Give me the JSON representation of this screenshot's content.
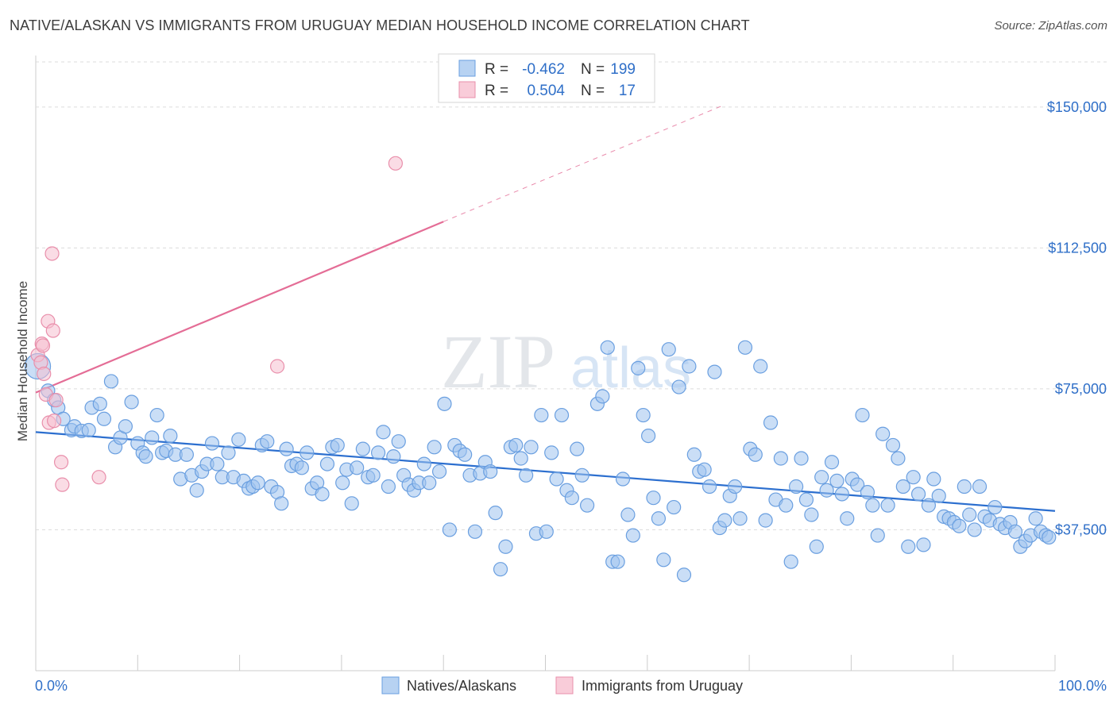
{
  "chart_data": {
    "type": "scatter",
    "title": "NATIVE/ALASKAN VS IMMIGRANTS FROM URUGUAY MEDIAN HOUSEHOLD INCOME CORRELATION CHART",
    "source": "Source: ZipAtlas.com",
    "watermark": {
      "zip": "ZIP",
      "atlas": "atlas"
    },
    "xlabel": "",
    "ylabel": "Median Household Income",
    "xlim": [
      0,
      100
    ],
    "ylim": [
      0,
      162000
    ],
    "x_tick_labels": [
      "0.0%",
      "100.0%"
    ],
    "y_ticks": [
      37500,
      75000,
      112500,
      150000
    ],
    "y_tick_labels": [
      "$37,500",
      "$75,000",
      "$112,500",
      "$150,000"
    ],
    "grid": true,
    "legend_position": "bottom",
    "stats_box": {
      "rows": [
        {
          "r_label": "R =",
          "r_value": "-0.462",
          "n_label": "N =",
          "n_value": "199"
        },
        {
          "r_label": "R =",
          "r_value": "0.504",
          "n_label": "N =",
          "n_value": "17"
        }
      ]
    },
    "series": [
      {
        "name": "Natives/Alaskans",
        "color": "#9ec3ef",
        "stroke": "#6a9fe0",
        "trend_color": "#2c6fcf",
        "trend": {
          "x": [
            0,
            100
          ],
          "y": [
            63500,
            42500
          ]
        },
        "points": [
          [
            0.2,
            81000
          ],
          [
            1.2,
            74500
          ],
          [
            1.8,
            72000
          ],
          [
            2.2,
            70000
          ],
          [
            2.7,
            67000
          ],
          [
            3.5,
            64000
          ],
          [
            3.8,
            65000
          ],
          [
            4.5,
            63800
          ],
          [
            5.2,
            64000
          ],
          [
            5.5,
            70000
          ],
          [
            6.3,
            71000
          ],
          [
            6.7,
            67000
          ],
          [
            7.4,
            77000
          ],
          [
            7.8,
            59500
          ],
          [
            8.3,
            62000
          ],
          [
            8.8,
            65000
          ],
          [
            9.4,
            71500
          ],
          [
            10.0,
            60500
          ],
          [
            10.5,
            58000
          ],
          [
            10.8,
            57000
          ],
          [
            11.4,
            62000
          ],
          [
            11.9,
            68000
          ],
          [
            12.4,
            58000
          ],
          [
            12.8,
            58500
          ],
          [
            13.2,
            62500
          ],
          [
            13.7,
            57500
          ],
          [
            14.2,
            51000
          ],
          [
            14.8,
            57500
          ],
          [
            15.3,
            52000
          ],
          [
            15.8,
            48000
          ],
          [
            16.3,
            53000
          ],
          [
            16.8,
            55000
          ],
          [
            17.3,
            60500
          ],
          [
            17.8,
            55000
          ],
          [
            18.3,
            51500
          ],
          [
            18.9,
            58000
          ],
          [
            19.4,
            51500
          ],
          [
            19.9,
            61500
          ],
          [
            20.4,
            50500
          ],
          [
            20.9,
            48500
          ],
          [
            21.3,
            49000
          ],
          [
            21.8,
            50000
          ],
          [
            22.2,
            60000
          ],
          [
            22.7,
            61000
          ],
          [
            23.1,
            49000
          ],
          [
            23.7,
            47500
          ],
          [
            24.1,
            44500
          ],
          [
            24.6,
            59000
          ],
          [
            25.1,
            54500
          ],
          [
            25.6,
            55000
          ],
          [
            26.1,
            54000
          ],
          [
            26.6,
            58000
          ],
          [
            27.1,
            48500
          ],
          [
            27.6,
            50000
          ],
          [
            28.1,
            47000
          ],
          [
            28.6,
            55000
          ],
          [
            29.1,
            59500
          ],
          [
            29.6,
            60000
          ],
          [
            30.1,
            50000
          ],
          [
            30.5,
            53500
          ],
          [
            31.0,
            44500
          ],
          [
            31.5,
            54000
          ],
          [
            32.1,
            59000
          ],
          [
            32.6,
            51500
          ],
          [
            33.1,
            52000
          ],
          [
            33.6,
            58000
          ],
          [
            34.1,
            63500
          ],
          [
            34.6,
            49000
          ],
          [
            35.1,
            57000
          ],
          [
            35.6,
            61000
          ],
          [
            36.1,
            52000
          ],
          [
            36.6,
            49500
          ],
          [
            37.1,
            48000
          ],
          [
            37.6,
            50000
          ],
          [
            38.1,
            55000
          ],
          [
            38.6,
            50000
          ],
          [
            39.1,
            59500
          ],
          [
            39.6,
            53000
          ],
          [
            40.1,
            71000
          ],
          [
            40.6,
            37500
          ],
          [
            41.1,
            60000
          ],
          [
            41.6,
            58500
          ],
          [
            42.1,
            57500
          ],
          [
            42.6,
            52000
          ],
          [
            43.1,
            37000
          ],
          [
            43.6,
            52500
          ],
          [
            44.1,
            55500
          ],
          [
            44.6,
            53000
          ],
          [
            45.1,
            42000
          ],
          [
            45.6,
            27000
          ],
          [
            46.1,
            33000
          ],
          [
            46.6,
            59500
          ],
          [
            47.1,
            60000
          ],
          [
            47.6,
            56500
          ],
          [
            48.1,
            52000
          ],
          [
            48.6,
            59500
          ],
          [
            49.1,
            36500
          ],
          [
            49.6,
            68000
          ],
          [
            50.1,
            37000
          ],
          [
            50.6,
            58000
          ],
          [
            51.1,
            51000
          ],
          [
            51.6,
            68000
          ],
          [
            52.1,
            48000
          ],
          [
            52.6,
            46000
          ],
          [
            53.1,
            59000
          ],
          [
            53.6,
            52000
          ],
          [
            54.1,
            44000
          ],
          [
            55.1,
            71000
          ],
          [
            55.6,
            73000
          ],
          [
            56.1,
            86000
          ],
          [
            56.6,
            29000
          ],
          [
            57.1,
            29000
          ],
          [
            57.6,
            51000
          ],
          [
            58.1,
            41500
          ],
          [
            58.6,
            36000
          ],
          [
            59.1,
            80500
          ],
          [
            59.6,
            68000
          ],
          [
            60.1,
            62500
          ],
          [
            60.6,
            46000
          ],
          [
            61.1,
            40500
          ],
          [
            61.6,
            29500
          ],
          [
            62.1,
            85500
          ],
          [
            62.6,
            43500
          ],
          [
            63.1,
            75500
          ],
          [
            63.6,
            25500
          ],
          [
            64.1,
            81000
          ],
          [
            64.6,
            57500
          ],
          [
            65.1,
            53000
          ],
          [
            65.6,
            53500
          ],
          [
            66.1,
            49000
          ],
          [
            66.6,
            79500
          ],
          [
            67.1,
            38000
          ],
          [
            67.6,
            40000
          ],
          [
            68.1,
            46500
          ],
          [
            68.6,
            49000
          ],
          [
            69.1,
            40500
          ],
          [
            69.6,
            86000
          ],
          [
            70.1,
            59000
          ],
          [
            70.6,
            57500
          ],
          [
            71.1,
            81000
          ],
          [
            71.6,
            40000
          ],
          [
            72.1,
            66000
          ],
          [
            72.6,
            45500
          ],
          [
            73.1,
            56500
          ],
          [
            73.6,
            44000
          ],
          [
            74.1,
            29000
          ],
          [
            74.6,
            49000
          ],
          [
            75.1,
            56500
          ],
          [
            75.6,
            45500
          ],
          [
            76.1,
            41500
          ],
          [
            76.6,
            33000
          ],
          [
            77.1,
            51500
          ],
          [
            77.6,
            48000
          ],
          [
            78.1,
            55500
          ],
          [
            78.6,
            50500
          ],
          [
            79.1,
            47000
          ],
          [
            79.6,
            40500
          ],
          [
            80.1,
            51000
          ],
          [
            80.6,
            49500
          ],
          [
            81.1,
            68000
          ],
          [
            81.6,
            47500
          ],
          [
            82.1,
            44000
          ],
          [
            82.6,
            36000
          ],
          [
            83.1,
            63000
          ],
          [
            83.6,
            44000
          ],
          [
            84.1,
            60000
          ],
          [
            84.6,
            56500
          ],
          [
            85.1,
            49000
          ],
          [
            85.6,
            33000
          ],
          [
            86.1,
            51500
          ],
          [
            86.6,
            47000
          ],
          [
            87.1,
            33500
          ],
          [
            87.6,
            44000
          ],
          [
            88.1,
            51000
          ],
          [
            88.6,
            46500
          ],
          [
            89.1,
            41000
          ],
          [
            89.6,
            40500
          ],
          [
            90.1,
            39500
          ],
          [
            90.6,
            38500
          ],
          [
            91.1,
            49000
          ],
          [
            91.6,
            41500
          ],
          [
            92.1,
            37500
          ],
          [
            92.6,
            49000
          ],
          [
            93.1,
            41000
          ],
          [
            93.6,
            40000
          ],
          [
            94.1,
            43500
          ],
          [
            94.6,
            39000
          ],
          [
            95.1,
            38000
          ],
          [
            95.6,
            39500
          ],
          [
            96.1,
            37000
          ],
          [
            96.6,
            33000
          ],
          [
            97.1,
            34500
          ],
          [
            97.6,
            36000
          ],
          [
            98.1,
            40500
          ],
          [
            98.6,
            37000
          ],
          [
            99.1,
            36000
          ],
          [
            99.4,
            35500
          ]
        ]
      },
      {
        "name": "Immigrants from Uruguay",
        "color": "#f6bfd0",
        "stroke": "#e98fab",
        "trend_color": "#e46d96",
        "trend": {
          "x": [
            0,
            40
          ],
          "y": [
            74000,
            119500
          ]
        },
        "trend_dashed": {
          "x": [
            40,
            67.5
          ],
          "y": [
            119500,
            150500
          ]
        },
        "points": [
          [
            0.2,
            84000
          ],
          [
            0.5,
            82000
          ],
          [
            0.6,
            87000
          ],
          [
            0.7,
            86500
          ],
          [
            0.8,
            79000
          ],
          [
            1.0,
            73500
          ],
          [
            1.2,
            93000
          ],
          [
            1.3,
            66000
          ],
          [
            1.6,
            111000
          ],
          [
            1.7,
            90500
          ],
          [
            1.8,
            66500
          ],
          [
            2.0,
            72000
          ],
          [
            2.5,
            55500
          ],
          [
            2.6,
            49500
          ],
          [
            6.2,
            51500
          ],
          [
            23.7,
            81000
          ],
          [
            35.3,
            135000
          ]
        ]
      }
    ]
  }
}
